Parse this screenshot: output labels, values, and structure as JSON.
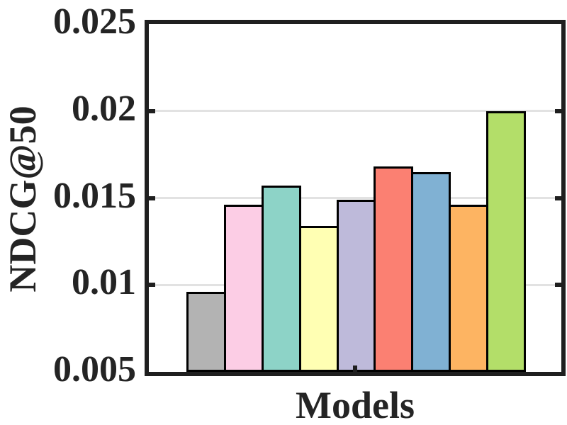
{
  "figure": {
    "background": "#ffffff",
    "axis_color": "#1f1f1f",
    "grid_color": "#e2e2e2",
    "text_color": "#242424",
    "tick_mark_color": "#1f1f1f"
  },
  "chart_data": {
    "type": "bar",
    "title": "",
    "xlabel": "Models",
    "ylabel": "NDCG@50",
    "ylim": [
      0.005,
      0.025
    ],
    "yticks": [
      0.005,
      0.01,
      0.015,
      0.02,
      0.025
    ],
    "ytick_labels": [
      "0.005",
      "0.01",
      "0.015",
      "0.02",
      "0.025"
    ],
    "gridlines_y": [
      0.01,
      0.015,
      0.02
    ],
    "grid": "horizontal",
    "legend_position": "none",
    "x_tick_labels": [],
    "bar_edge_color": "#000000",
    "bars": [
      {
        "color": "#b3b3b3",
        "value": 0.0096
      },
      {
        "color": "#fccde5",
        "value": 0.0146
      },
      {
        "color": "#8dd3c7",
        "value": 0.0157
      },
      {
        "color": "#ffffb3",
        "value": 0.0134
      },
      {
        "color": "#bebada",
        "value": 0.0149
      },
      {
        "color": "#fb8072",
        "value": 0.0168
      },
      {
        "color": "#80b1d3",
        "value": 0.0165
      },
      {
        "color": "#fdb462",
        "value": 0.0146
      },
      {
        "color": "#b3de69",
        "value": 0.02
      }
    ]
  }
}
